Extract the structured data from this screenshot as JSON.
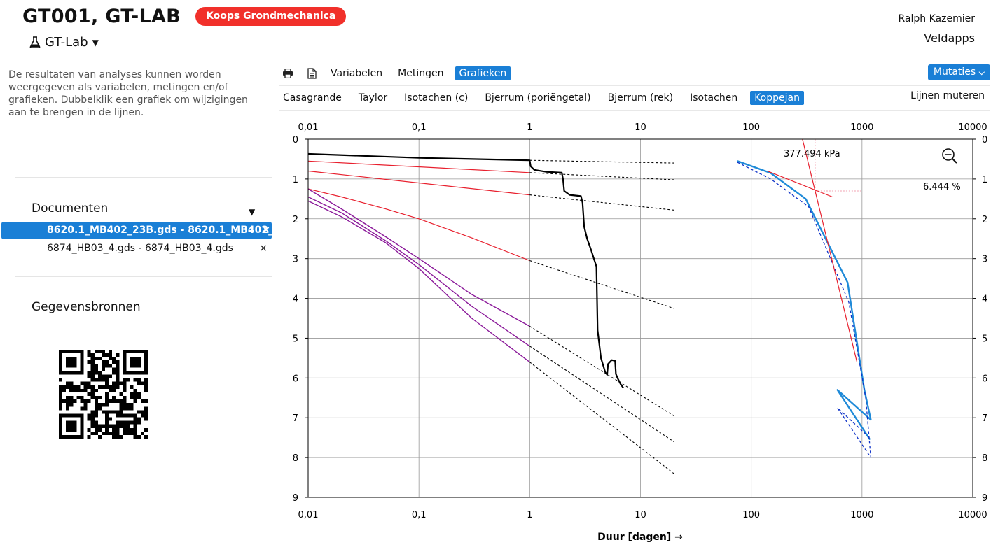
{
  "header": {
    "title": "GT001, GT-LAB",
    "badge": "Koops Grondmechanica",
    "lab_menu": "GT-Lab",
    "user": "Ralph Kazemier",
    "org": "Veldapps"
  },
  "sidebar": {
    "intro": "De resultaten van analyses kunnen worden weergegeven als variabelen, metingen en/of grafieken. Dubbelklik een grafiek om wijzigingen aan te brengen in de lijnen.",
    "documents_title": "Documenten",
    "documents": [
      {
        "label": "8620.1_MB402_23B.gds - 8620.1_MB402_23B.gds",
        "active": true
      },
      {
        "label": "6874_HB03_4.gds - 6874_HB03_4.gds",
        "active": false
      }
    ],
    "close_glyph": "×",
    "sources_title": "Gegevensbronnen"
  },
  "toolbar": {
    "tabs": [
      "Variabelen",
      "Metingen",
      "Grafieken"
    ],
    "active_tab": "Grafieken",
    "mutaties": "Mutaties"
  },
  "chart_tabs": {
    "items": [
      "Casagrande",
      "Taylor",
      "Isotachen (c)",
      "Bjerrum (poriëngetal)",
      "Bjerrum (rek)",
      "Isotachen",
      "Koppejan"
    ],
    "active": "Koppejan",
    "lijnen_muteren": "Lijnen muteren"
  },
  "chart_data": {
    "type": "line",
    "xlabel": "Duur [dagen] →",
    "x_scale": "log",
    "x_ticks": [
      "0,01",
      "0,1",
      "1",
      "10",
      "100",
      "1000",
      "10000"
    ],
    "y_ticks": [
      "0",
      "1",
      "2",
      "3",
      "4",
      "5",
      "6",
      "7",
      "8",
      "9"
    ],
    "ylim": [
      0,
      9
    ],
    "y_inverted": true,
    "grid": true,
    "annotations": {
      "pressure": "377.494 kPa",
      "strain": "6.444 %"
    },
    "colors": {
      "measurement": "#000000",
      "fit": "#e8202e",
      "isotache": "#8b1a9a",
      "extrapolation": "#000000",
      "koppejan": "#1f8ad8",
      "koppejan_dashed": "#1033c8",
      "guide": "#f2a0b0"
    },
    "series": [
      {
        "kind": "measurement",
        "points": [
          [
            0.01,
            0.37
          ],
          [
            0.1,
            0.47
          ],
          [
            0.7,
            0.52
          ],
          [
            1.0,
            0.53
          ],
          [
            1.02,
            0.68
          ],
          [
            1.1,
            0.77
          ],
          [
            1.4,
            0.82
          ],
          [
            1.95,
            0.84
          ],
          [
            2.0,
            1.0
          ],
          [
            2.05,
            1.3
          ],
          [
            2.3,
            1.4
          ],
          [
            2.9,
            1.43
          ],
          [
            3.0,
            1.6
          ],
          [
            3.1,
            2.2
          ],
          [
            3.3,
            2.5
          ],
          [
            3.6,
            2.8
          ],
          [
            3.9,
            3.1
          ],
          [
            4.0,
            3.2
          ],
          [
            4.1,
            4.8
          ],
          [
            4.4,
            5.5
          ],
          [
            4.8,
            5.85
          ],
          [
            5.0,
            5.92
          ],
          [
            5.1,
            5.65
          ],
          [
            5.5,
            5.55
          ],
          [
            5.9,
            5.57
          ],
          [
            6.0,
            5.9
          ],
          [
            6.2,
            6.0
          ],
          [
            6.6,
            6.15
          ],
          [
            7.0,
            6.25
          ]
        ]
      },
      {
        "kind": "fit",
        "points": [
          [
            0.01,
            0.55
          ],
          [
            1.0,
            0.84
          ]
        ]
      },
      {
        "kind": "fit",
        "points": [
          [
            0.01,
            0.8
          ],
          [
            1.0,
            1.4
          ]
        ]
      },
      {
        "kind": "fit",
        "points": [
          [
            0.01,
            1.25
          ],
          [
            0.02,
            1.45
          ],
          [
            0.05,
            1.75
          ],
          [
            0.1,
            2.0
          ],
          [
            0.3,
            2.48
          ],
          [
            1.0,
            3.05
          ]
        ]
      },
      {
        "kind": "isotache",
        "points": [
          [
            0.01,
            1.25
          ],
          [
            0.02,
            1.75
          ],
          [
            0.05,
            2.45
          ],
          [
            0.1,
            3.0
          ],
          [
            0.3,
            3.9
          ],
          [
            1.0,
            4.7
          ]
        ]
      },
      {
        "kind": "isotache",
        "points": [
          [
            0.01,
            1.45
          ],
          [
            0.02,
            1.85
          ],
          [
            0.05,
            2.55
          ],
          [
            0.1,
            3.15
          ],
          [
            0.3,
            4.2
          ],
          [
            1.0,
            5.2
          ]
        ]
      },
      {
        "kind": "isotache",
        "points": [
          [
            0.01,
            1.55
          ],
          [
            0.02,
            1.95
          ],
          [
            0.05,
            2.6
          ],
          [
            0.1,
            3.25
          ],
          [
            0.3,
            4.5
          ],
          [
            1.0,
            5.6
          ]
        ]
      },
      {
        "kind": "extrapolation",
        "points": [
          [
            1.0,
            0.53
          ],
          [
            20,
            0.6
          ]
        ]
      },
      {
        "kind": "extrapolation",
        "points": [
          [
            1.0,
            0.84
          ],
          [
            20,
            1.02
          ]
        ]
      },
      {
        "kind": "extrapolation",
        "points": [
          [
            1.0,
            1.4
          ],
          [
            20,
            1.78
          ]
        ]
      },
      {
        "kind": "extrapolation",
        "points": [
          [
            1.0,
            3.05
          ],
          [
            20,
            4.25
          ]
        ]
      },
      {
        "kind": "extrapolation",
        "points": [
          [
            1.0,
            4.7
          ],
          [
            20,
            6.95
          ]
        ]
      },
      {
        "kind": "extrapolation",
        "points": [
          [
            1.0,
            5.2
          ],
          [
            20,
            7.6
          ]
        ]
      },
      {
        "kind": "extrapolation",
        "points": [
          [
            1.0,
            5.6
          ],
          [
            20,
            8.4
          ]
        ]
      },
      {
        "kind": "koppejan",
        "points": [
          [
            75,
            0.55
          ],
          [
            150,
            0.85
          ],
          [
            310,
            1.5
          ],
          [
            740,
            3.6
          ],
          [
            1050,
            6.3
          ],
          [
            1200,
            7.05
          ],
          [
            600,
            6.3
          ],
          [
            1180,
            7.55
          ]
        ]
      },
      {
        "kind": "koppejan_dashed",
        "points": [
          [
            75,
            0.58
          ],
          [
            150,
            1.0
          ],
          [
            330,
            1.7
          ],
          [
            760,
            4.1
          ],
          [
            1080,
            6.5
          ],
          [
            1200,
            8.0
          ],
          [
            600,
            6.75
          ],
          [
            1170,
            7.5
          ]
        ]
      },
      {
        "kind": "fit",
        "points": [
          [
            140,
            0.8
          ],
          [
            540,
            1.45
          ]
        ]
      },
      {
        "kind": "fit",
        "points": [
          [
            290,
            0.0
          ],
          [
            900,
            5.6
          ]
        ]
      }
    ],
    "guide_point": {
      "x": 377.494,
      "y": 1.3
    }
  }
}
